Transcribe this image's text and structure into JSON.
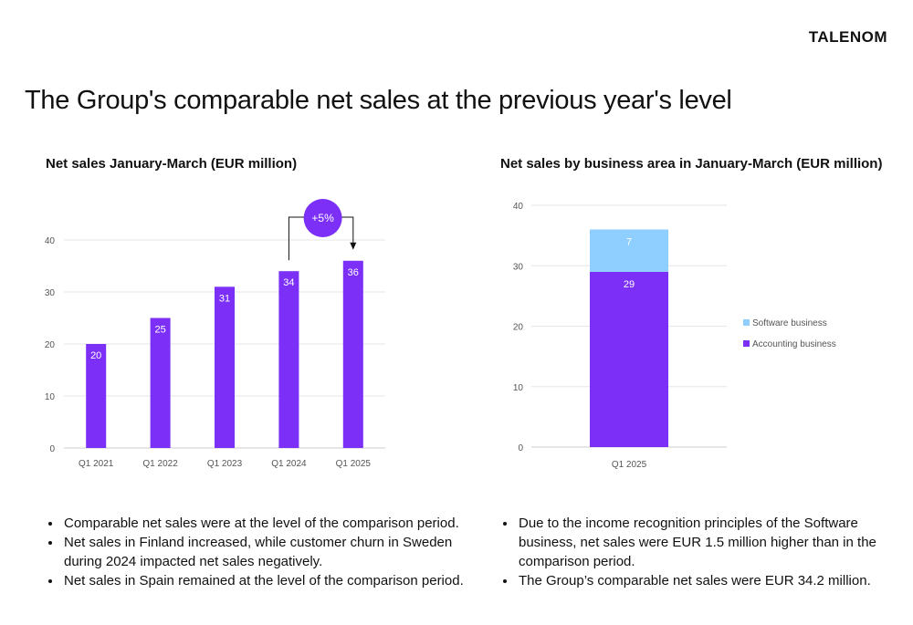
{
  "logo_text": "TALENOM",
  "page_title": "The Group's comparable net sales at the previous year's level",
  "colors": {
    "purple": "#7b2ff7",
    "light_blue": "#8ecfff",
    "grid": "#e6e6e6",
    "axis": "#cccccc"
  },
  "chart_data": [
    {
      "type": "bar",
      "title": "Net sales January-March (EUR million)",
      "categories": [
        "Q1 2021",
        "Q1 2022",
        "Q1 2023",
        "Q1 2024",
        "Q1 2025"
      ],
      "values": [
        20,
        25,
        31,
        34,
        36
      ],
      "data_labels": [
        "20",
        "25",
        "31",
        "34",
        "36"
      ],
      "y_ticks": [
        "0",
        "10",
        "20",
        "30",
        "40"
      ],
      "ylim": [
        0,
        40
      ],
      "grid": true,
      "annotation": {
        "text": "+5%",
        "from": "Q1 2024",
        "to": "Q1 2025"
      }
    },
    {
      "type": "bar",
      "stacked": true,
      "title": "Net sales by business area in January-March (EUR million)",
      "categories": [
        "Q1 2025"
      ],
      "series": [
        {
          "name": "Accounting business",
          "values": [
            29
          ],
          "labels": [
            "29"
          ]
        },
        {
          "name": "Software business",
          "values": [
            7
          ],
          "labels": [
            "7"
          ]
        }
      ],
      "y_ticks": [
        "0",
        "10",
        "20",
        "30",
        "40"
      ],
      "ylim": [
        0,
        40
      ],
      "grid": true,
      "legend_position": "right"
    }
  ],
  "bullets_left": [
    "Comparable net sales were at the level of the comparison period.",
    "Net sales in Finland increased, while customer churn in Sweden during 2024  impacted net sales negatively.",
    "Net sales in Spain remained at the level of the comparison period."
  ],
  "bullets_right": [
    "Due to the income recognition principles of the Software business, net sales were EUR 1.5 million higher than in the comparison period.",
    "The Group’s comparable net sales were EUR 34.2 million."
  ]
}
